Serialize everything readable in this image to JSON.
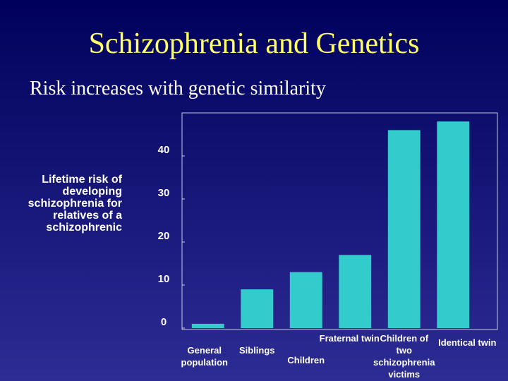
{
  "chart_data": {
    "type": "bar",
    "title": "Schizophrenia and Genetics",
    "subtitle": "Risk increases with genetic similarity",
    "y_label": "Lifetime risk of developing schizophrenia for relatives of a schizophrenic",
    "categories": [
      "General population",
      "Siblings",
      "Children",
      "Fraternal twin",
      "Children of two schizophrenia victims",
      "Identical twin"
    ],
    "values": [
      1,
      9,
      13,
      17,
      46,
      48
    ],
    "color": "#33cccc",
    "ylim": [
      0,
      50
    ],
    "yticks": [
      0,
      10,
      20,
      30,
      40
    ],
    "grid": false
  }
}
